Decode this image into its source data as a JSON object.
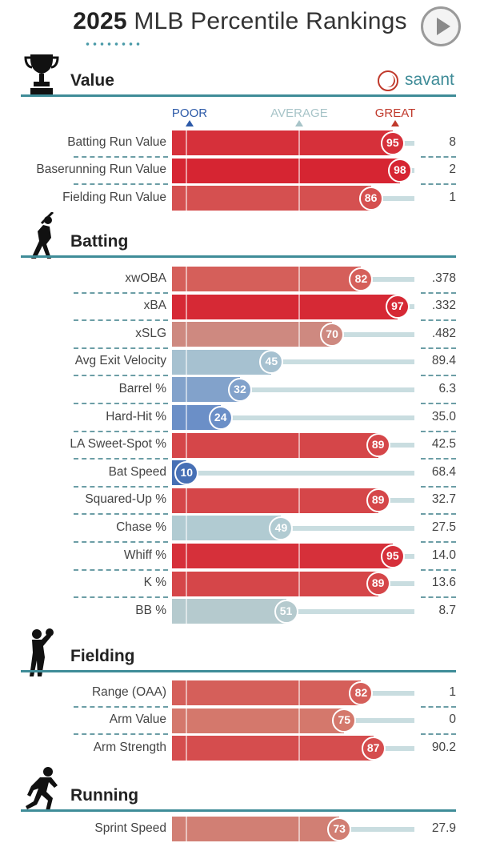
{
  "header": {
    "year": "2025",
    "title": "MLB Percentile Rankings"
  },
  "logo": {
    "text": "savant"
  },
  "scale": {
    "poor": "POOR",
    "average": "AVERAGE",
    "great": "GREAT"
  },
  "colors": {
    "accent": "#3f8c98",
    "poor": "#2d5aa8",
    "great": "#c0392b",
    "average": "#a7c4c8"
  },
  "chart_data": {
    "type": "bar",
    "title": "2025 MLB Percentile Rankings",
    "xlim": [
      0,
      100
    ],
    "sections": [
      {
        "name": "Value",
        "icon": "trophy-icon",
        "rows": [
          {
            "label": "Batting Run Value",
            "percentile": 95,
            "value": "8"
          },
          {
            "label": "Baserunning Run Value",
            "percentile": 98,
            "value": "2"
          },
          {
            "label": "Fielding Run Value",
            "percentile": 86,
            "value": "1"
          }
        ]
      },
      {
        "name": "Batting",
        "icon": "batter-icon",
        "rows": [
          {
            "label": "xwOBA",
            "percentile": 82,
            "value": ".378"
          },
          {
            "label": "xBA",
            "percentile": 97,
            "value": ".332"
          },
          {
            "label": "xSLG",
            "percentile": 70,
            "value": ".482"
          },
          {
            "label": "Avg Exit Velocity",
            "percentile": 45,
            "value": "89.4"
          },
          {
            "label": "Barrel %",
            "percentile": 32,
            "value": "6.3"
          },
          {
            "label": "Hard-Hit %",
            "percentile": 24,
            "value": "35.0"
          },
          {
            "label": "LA Sweet-Spot %",
            "percentile": 89,
            "value": "42.5"
          },
          {
            "label": "Bat Speed",
            "percentile": 10,
            "value": "68.4"
          },
          {
            "label": "Squared-Up %",
            "percentile": 89,
            "value": "32.7"
          },
          {
            "label": "Chase %",
            "percentile": 49,
            "value": "27.5"
          },
          {
            "label": "Whiff %",
            "percentile": 95,
            "value": "14.0"
          },
          {
            "label": "K %",
            "percentile": 89,
            "value": "13.6"
          },
          {
            "label": "BB %",
            "percentile": 51,
            "value": "8.7"
          }
        ]
      },
      {
        "name": "Fielding",
        "icon": "fielder-icon",
        "rows": [
          {
            "label": "Range (OAA)",
            "percentile": 82,
            "value": "1"
          },
          {
            "label": "Arm Value",
            "percentile": 75,
            "value": "0"
          },
          {
            "label": "Arm Strength",
            "percentile": 87,
            "value": "90.2"
          }
        ]
      },
      {
        "name": "Running",
        "icon": "runner-icon",
        "rows": [
          {
            "label": "Sprint Speed",
            "percentile": 73,
            "value": "27.9"
          }
        ]
      }
    ]
  }
}
